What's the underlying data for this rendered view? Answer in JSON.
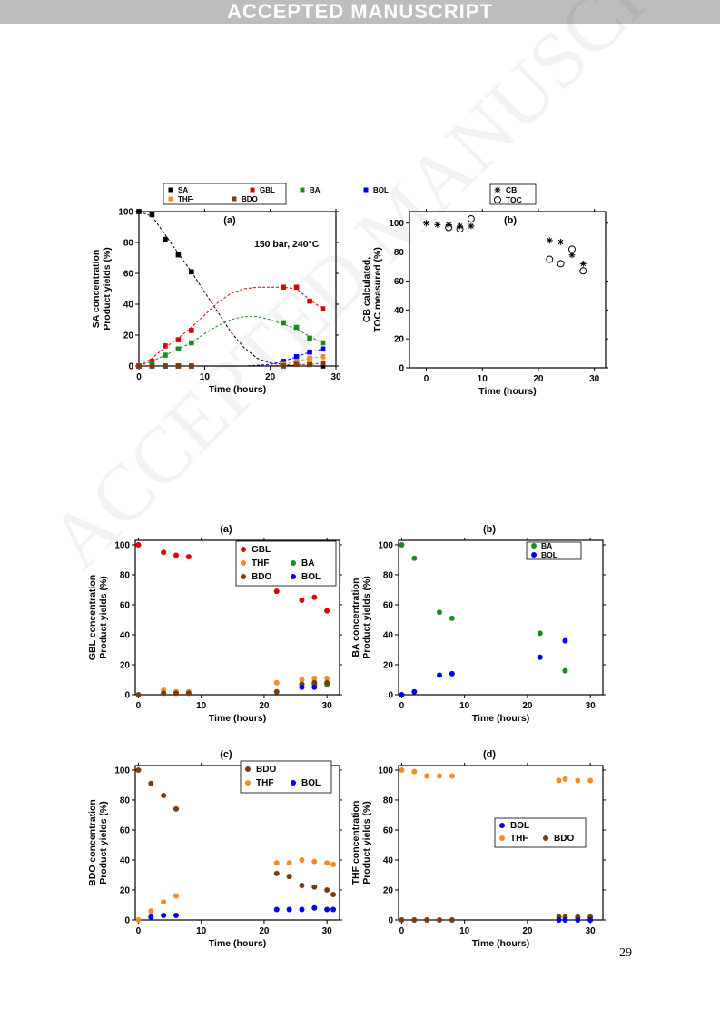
{
  "header": {
    "banner": "ACCEPTED MANUSCRIPT"
  },
  "footer": {
    "page_number": "29"
  },
  "watermark": "ACCEPTED MANUSCRIPT",
  "colors": {
    "SA": "#000000",
    "GBL": "#e00000",
    "BA": "#1a8c1a",
    "BOL": "#0000ee",
    "THF": "#f28c28",
    "BDO": "#7a3b0f",
    "banner": "#bdbdbd"
  },
  "chart_data": [
    {
      "id": "fig1a",
      "type": "scatter",
      "panel_label": "(a)",
      "annotation": "150 bar, 240°C",
      "xlabel": "Time (hours)",
      "ylabel": [
        "SA concentration",
        "Product yields (%)"
      ],
      "xlim": [
        0,
        30
      ],
      "ylim": [
        0,
        100
      ],
      "xticks": [
        0,
        10,
        20,
        30
      ],
      "yticks": [
        0,
        20,
        40,
        60,
        80,
        100
      ],
      "legend_rows": [
        [
          "SA",
          "GBL",
          "BA·",
          "BOL"
        ],
        [
          "THF·",
          "BDO"
        ]
      ],
      "series": [
        {
          "name": "SA",
          "marker": "square",
          "color": "#000000",
          "x": [
            0,
            2,
            4,
            6,
            8,
            22,
            24,
            26,
            28
          ],
          "y": [
            100,
            98,
            82,
            72,
            61,
            2,
            2,
            1,
            0
          ]
        },
        {
          "name": "GBL",
          "marker": "square",
          "color": "#e00000",
          "x": [
            0,
            2,
            4,
            6,
            8,
            22,
            24,
            26,
            28
          ],
          "y": [
            0,
            3,
            13,
            17,
            23,
            51,
            51,
            42,
            37
          ]
        },
        {
          "name": "BA",
          "marker": "square",
          "color": "#1a8c1a",
          "x": [
            0,
            2,
            4,
            6,
            8,
            22,
            24,
            26,
            28
          ],
          "y": [
            0,
            2,
            7,
            11,
            15,
            28,
            25,
            18,
            15
          ]
        },
        {
          "name": "BOL",
          "marker": "square",
          "color": "#0000ee",
          "x": [
            0,
            2,
            4,
            6,
            8,
            22,
            24,
            26,
            28
          ],
          "y": [
            0,
            0,
            0,
            0,
            0,
            3,
            6,
            9,
            11
          ]
        },
        {
          "name": "THF",
          "marker": "square",
          "color": "#f28c28",
          "x": [
            0,
            2,
            4,
            6,
            8,
            22,
            24,
            26,
            28
          ],
          "y": [
            0,
            0,
            0,
            0,
            0,
            1,
            3,
            5,
            6
          ]
        },
        {
          "name": "BDO",
          "marker": "square",
          "color": "#7a3b0f",
          "x": [
            0,
            2,
            4,
            6,
            8,
            22,
            24,
            26,
            28
          ],
          "y": [
            0,
            0,
            0,
            0,
            0,
            0,
            1,
            1,
            2
          ]
        }
      ],
      "trend_lines": [
        {
          "color": "#000000",
          "x": [
            0,
            2,
            4,
            6,
            8,
            10,
            12,
            14,
            16,
            18,
            20,
            22,
            24,
            26,
            28
          ],
          "y": [
            100,
            97,
            85,
            73,
            61,
            48,
            35,
            22,
            12,
            5,
            2,
            1,
            0,
            0,
            0
          ]
        },
        {
          "color": "#e00000",
          "x": [
            0,
            2,
            4,
            6,
            8,
            10,
            12,
            14,
            16,
            18,
            20,
            22,
            24,
            26,
            28
          ],
          "y": [
            0,
            5,
            12,
            18,
            25,
            33,
            41,
            47,
            50,
            51,
            51,
            51,
            50,
            43,
            37
          ]
        },
        {
          "color": "#1a8c1a",
          "x": [
            0,
            2,
            4,
            6,
            8,
            10,
            12,
            14,
            16,
            18,
            20,
            22,
            24,
            26,
            28
          ],
          "y": [
            0,
            3,
            7,
            11,
            15,
            21,
            26,
            30,
            32,
            32,
            30,
            27,
            24,
            19,
            15
          ]
        },
        {
          "color": "#0000ee",
          "x": [
            0,
            4,
            8,
            12,
            16,
            20,
            22,
            24,
            26,
            28
          ],
          "y": [
            0,
            0,
            0,
            0,
            0,
            1,
            3,
            6,
            9,
            11
          ]
        },
        {
          "color": "#f28c28",
          "x": [
            0,
            4,
            8,
            12,
            16,
            20,
            22,
            24,
            26,
            28
          ],
          "y": [
            0,
            0,
            0,
            0,
            0,
            0,
            1,
            3,
            5,
            6
          ]
        },
        {
          "color": "#7a3b0f",
          "x": [
            0,
            4,
            8,
            12,
            16,
            20,
            22,
            24,
            26,
            28
          ],
          "y": [
            0,
            0,
            0,
            0,
            0,
            0,
            0,
            1,
            1,
            2
          ]
        }
      ]
    },
    {
      "id": "fig1b",
      "type": "scatter",
      "panel_label": "(b)",
      "xlabel": "Time (hours)",
      "ylabel": [
        "CB calculated,",
        "TOC measured (%)"
      ],
      "xlim": [
        -3,
        32
      ],
      "ylim": [
        0,
        108
      ],
      "xticks": [
        0,
        10,
        20,
        30
      ],
      "yticks": [
        0,
        20,
        40,
        60,
        80,
        100
      ],
      "legend_rows": [
        [
          "CB"
        ],
        [
          "TOC"
        ]
      ],
      "series": [
        {
          "name": "CB",
          "marker": "asterisk",
          "color": "#000000",
          "x": [
            0,
            2,
            4,
            6,
            8,
            22,
            24,
            26,
            28
          ],
          "y": [
            100,
            99,
            99,
            98,
            98,
            88,
            87,
            78,
            72
          ]
        },
        {
          "name": "TOC",
          "marker": "circle-open",
          "color": "#000000",
          "x": [
            4,
            6,
            8,
            22,
            24,
            26,
            28
          ],
          "y": [
            97,
            96,
            103,
            75,
            72,
            82,
            67
          ]
        }
      ]
    },
    {
      "id": "fig2a",
      "type": "scatter",
      "panel_label": "(a)",
      "xlabel": "Time (hours)",
      "ylabel": [
        "GBL concentration",
        "Product yields (%)"
      ],
      "xlim": [
        -0.5,
        32
      ],
      "ylim": [
        0,
        103
      ],
      "xticks": [
        0,
        10,
        20,
        30
      ],
      "yticks": [
        0,
        20,
        40,
        60,
        80,
        100
      ],
      "legend_rows": [
        [
          "GBL"
        ],
        [
          "THF",
          "BA"
        ],
        [
          "BDO",
          "BOL"
        ]
      ],
      "series": [
        {
          "name": "GBL",
          "marker": "circle",
          "color": "#e00000",
          "x": [
            0,
            4,
            6,
            8,
            22,
            26,
            28,
            30
          ],
          "y": [
            100,
            95,
            93,
            92,
            69,
            63,
            65,
            56
          ]
        },
        {
          "name": "THF",
          "marker": "circle",
          "color": "#f28c28",
          "x": [
            4,
            6,
            8,
            22,
            26,
            28,
            30
          ],
          "y": [
            3,
            2,
            2,
            8,
            10,
            11,
            11
          ]
        },
        {
          "name": "BA",
          "marker": "circle",
          "color": "#1a8c1a",
          "x": [
            26,
            28,
            30
          ],
          "y": [
            7,
            7,
            7
          ]
        },
        {
          "name": "BDO",
          "marker": "circle",
          "color": "#7a3b0f",
          "x": [
            0,
            4,
            6,
            8,
            22,
            26,
            28,
            30
          ],
          "y": [
            0,
            1,
            1,
            1,
            2,
            7,
            8,
            8
          ]
        },
        {
          "name": "BOL",
          "marker": "circle",
          "color": "#0000ee",
          "x": [
            26,
            28
          ],
          "y": [
            5,
            5
          ]
        }
      ]
    },
    {
      "id": "fig2b",
      "type": "scatter",
      "panel_label": "(b)",
      "xlabel": "Time (hours)",
      "ylabel": [
        "BA concentration",
        "Product yields (%)"
      ],
      "xlim": [
        -0.5,
        32
      ],
      "ylim": [
        0,
        103
      ],
      "xticks": [
        0,
        10,
        20,
        30
      ],
      "yticks": [
        0,
        20,
        40,
        60,
        80,
        100
      ],
      "legend_rows": [
        [
          "BA"
        ],
        [
          "BOL"
        ]
      ],
      "series": [
        {
          "name": "BA",
          "marker": "circle",
          "color": "#1a8c1a",
          "x": [
            0,
            2,
            6,
            8,
            22,
            26
          ],
          "y": [
            100,
            91,
            55,
            51,
            41,
            16
          ]
        },
        {
          "name": "BOL",
          "marker": "circle",
          "color": "#0000ee",
          "x": [
            0,
            2,
            6,
            8,
            22,
            26
          ],
          "y": [
            0,
            2,
            13,
            14,
            25,
            36
          ]
        }
      ]
    },
    {
      "id": "fig2c",
      "type": "scatter",
      "panel_label": "(c)",
      "xlabel": "Time (hours)",
      "ylabel": [
        "BDO concentration",
        "Product yields (%)"
      ],
      "xlim": [
        -0.5,
        32
      ],
      "ylim": [
        0,
        103
      ],
      "xticks": [
        0,
        10,
        20,
        30
      ],
      "yticks": [
        0,
        20,
        40,
        60,
        80,
        100
      ],
      "legend_rows": [
        [
          "BDO"
        ],
        [
          "THF",
          "BOL"
        ]
      ],
      "series": [
        {
          "name": "BDO",
          "marker": "circle",
          "color": "#7a3b0f",
          "x": [
            0,
            2,
            4,
            6,
            22,
            24,
            26,
            28,
            30,
            31
          ],
          "y": [
            100,
            91,
            83,
            74,
            31,
            29,
            23,
            22,
            20,
            17
          ]
        },
        {
          "name": "THF",
          "marker": "circle",
          "color": "#f28c28",
          "x": [
            0,
            2,
            4,
            6,
            22,
            24,
            26,
            28,
            30,
            31
          ],
          "y": [
            0,
            6,
            12,
            16,
            38,
            38,
            40,
            39,
            38,
            37
          ]
        },
        {
          "name": "BOL",
          "marker": "circle",
          "color": "#0000ee",
          "x": [
            2,
            4,
            6,
            22,
            24,
            26,
            28,
            30,
            31
          ],
          "y": [
            2,
            3,
            3,
            7,
            7,
            7,
            8,
            7,
            7
          ]
        }
      ]
    },
    {
      "id": "fig2d",
      "type": "scatter",
      "panel_label": "(d)",
      "xlabel": "Time (hours)",
      "ylabel": [
        "THF concentration",
        "Product yields (%)"
      ],
      "xlim": [
        -0.5,
        32
      ],
      "ylim": [
        0,
        103
      ],
      "xticks": [
        0,
        10,
        20,
        30
      ],
      "yticks": [
        0,
        20,
        40,
        60,
        80,
        100
      ],
      "legend_rows": [
        [
          "BOL"
        ],
        [
          "THF",
          "BDO"
        ]
      ],
      "series": [
        {
          "name": "THF",
          "marker": "circle",
          "color": "#f28c28",
          "x": [
            0,
            2,
            4,
            6,
            8,
            25,
            26,
            28,
            30
          ],
          "y": [
            100,
            99,
            96,
            96,
            96,
            93,
            94,
            93,
            93
          ]
        },
        {
          "name": "BDO",
          "marker": "circle",
          "color": "#7a3b0f",
          "x": [
            0,
            2,
            4,
            6,
            8,
            25,
            26,
            28,
            30
          ],
          "y": [
            0,
            0,
            0,
            0,
            0,
            2,
            2,
            2,
            2
          ]
        },
        {
          "name": "BOL",
          "marker": "circle",
          "color": "#0000ee",
          "x": [
            25,
            26,
            28,
            30
          ],
          "y": [
            0,
            0,
            0,
            0
          ]
        }
      ]
    }
  ]
}
